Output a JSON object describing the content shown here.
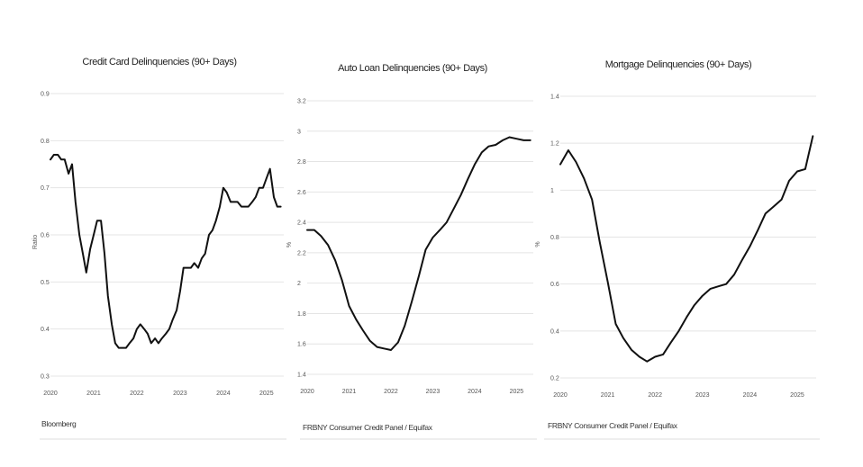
{
  "chart_data": [
    {
      "type": "line",
      "title": "Credit Card Delinquencies (90+ Days)",
      "ylabel": "Ratio",
      "source": "Bloomberg",
      "xlim": [
        2020,
        2025.4
      ],
      "ylim": [
        0.3,
        0.9
      ],
      "x_ticks": [
        "2020",
        "2021",
        "2022",
        "2023",
        "2024",
        "2025"
      ],
      "y_ticks": [
        "0.3",
        "0.4",
        "0.5",
        "0.6",
        "0.7",
        "0.8",
        "0.9"
      ],
      "grid": true,
      "series": [
        {
          "x": [
            2020.0,
            2020.08,
            2020.17,
            2020.25,
            2020.33,
            2020.42,
            2020.5,
            2020.58,
            2020.67,
            2020.75,
            2020.83,
            2020.92,
            2021.0,
            2021.08,
            2021.17,
            2021.25,
            2021.33,
            2021.42,
            2021.5,
            2021.58,
            2021.67,
            2021.75,
            2021.83,
            2021.92,
            2022.0,
            2022.08,
            2022.17,
            2022.25,
            2022.33,
            2022.42,
            2022.5,
            2022.58,
            2022.67,
            2022.75,
            2022.83,
            2022.92,
            2023.0,
            2023.08,
            2023.17,
            2023.25,
            2023.33,
            2023.42,
            2023.5,
            2023.58,
            2023.67,
            2023.75,
            2023.83,
            2023.92,
            2024.0,
            2024.08,
            2024.17,
            2024.25,
            2024.33,
            2024.42,
            2024.5,
            2024.58,
            2024.67,
            2024.75,
            2024.83,
            2024.92,
            2025.0,
            2025.08,
            2025.17,
            2025.25,
            2025.33
          ],
          "y": [
            0.76,
            0.77,
            0.77,
            0.76,
            0.76,
            0.73,
            0.75,
            0.67,
            0.6,
            0.56,
            0.52,
            0.57,
            0.6,
            0.63,
            0.63,
            0.56,
            0.47,
            0.41,
            0.37,
            0.36,
            0.36,
            0.36,
            0.37,
            0.38,
            0.4,
            0.41,
            0.4,
            0.39,
            0.37,
            0.38,
            0.37,
            0.38,
            0.39,
            0.4,
            0.42,
            0.44,
            0.48,
            0.53,
            0.53,
            0.53,
            0.54,
            0.53,
            0.55,
            0.56,
            0.6,
            0.61,
            0.63,
            0.66,
            0.7,
            0.69,
            0.67,
            0.67,
            0.67,
            0.66,
            0.66,
            0.66,
            0.67,
            0.68,
            0.7,
            0.7,
            0.72,
            0.74,
            0.68,
            0.66,
            0.66
          ]
        }
      ]
    },
    {
      "type": "line",
      "title": "Auto Loan Delinquencies (90+ Days)",
      "ylabel": "%",
      "source": "FRBNY Consumer Credit Panel / Equifax",
      "xlim": [
        2020,
        2025.4
      ],
      "ylim": [
        1.4,
        3.2
      ],
      "x_ticks": [
        "2020",
        "2021",
        "2022",
        "2023",
        "2024",
        "2025"
      ],
      "y_ticks": [
        "1.4",
        "1.6",
        "1.8",
        "2",
        "2.2",
        "2.4",
        "2.6",
        "2.8",
        "3",
        "3.2"
      ],
      "grid": true,
      "series": [
        {
          "x": [
            2020.0,
            2020.17,
            2020.33,
            2020.5,
            2020.67,
            2020.83,
            2021.0,
            2021.17,
            2021.33,
            2021.5,
            2021.67,
            2021.83,
            2022.0,
            2022.17,
            2022.33,
            2022.5,
            2022.67,
            2022.83,
            2023.0,
            2023.17,
            2023.33,
            2023.5,
            2023.67,
            2023.83,
            2024.0,
            2024.17,
            2024.33,
            2024.5,
            2024.67,
            2024.83,
            2025.0,
            2025.17,
            2025.33
          ],
          "y": [
            2.35,
            2.35,
            2.31,
            2.25,
            2.15,
            2.02,
            1.85,
            1.76,
            1.69,
            1.62,
            1.58,
            1.57,
            1.56,
            1.61,
            1.72,
            1.88,
            2.05,
            2.22,
            2.3,
            2.35,
            2.4,
            2.49,
            2.58,
            2.68,
            2.78,
            2.86,
            2.9,
            2.91,
            2.94,
            2.96,
            2.95,
            2.94,
            2.94
          ]
        }
      ]
    },
    {
      "type": "line",
      "title": "Mortgage Delinquencies (90+ Days)",
      "ylabel": "%",
      "source": "FRBNY Consumer Credit Panel / Equifax",
      "xlim": [
        2020,
        2025.4
      ],
      "ylim": [
        0.2,
        1.4
      ],
      "x_ticks": [
        "2020",
        "2021",
        "2022",
        "2023",
        "2024",
        "2025"
      ],
      "y_ticks": [
        "0.2",
        "0.4",
        "0.6",
        "0.8",
        "1",
        "1.2",
        "1.4"
      ],
      "grid": true,
      "series": [
        {
          "x": [
            2020.0,
            2020.17,
            2020.33,
            2020.5,
            2020.67,
            2020.83,
            2021.0,
            2021.17,
            2021.33,
            2021.5,
            2021.67,
            2021.83,
            2022.0,
            2022.17,
            2022.33,
            2022.5,
            2022.67,
            2022.83,
            2023.0,
            2023.17,
            2023.33,
            2023.5,
            2023.67,
            2023.83,
            2024.0,
            2024.17,
            2024.33,
            2024.5,
            2024.67,
            2024.83,
            2025.0,
            2025.17,
            2025.33
          ],
          "y": [
            1.11,
            1.17,
            1.12,
            1.05,
            0.96,
            0.78,
            0.61,
            0.43,
            0.37,
            0.32,
            0.29,
            0.27,
            0.29,
            0.3,
            0.35,
            0.4,
            0.46,
            0.51,
            0.55,
            0.58,
            0.59,
            0.6,
            0.64,
            0.7,
            0.76,
            0.83,
            0.9,
            0.93,
            0.96,
            1.04,
            1.08,
            1.09,
            1.23
          ]
        }
      ]
    }
  ]
}
